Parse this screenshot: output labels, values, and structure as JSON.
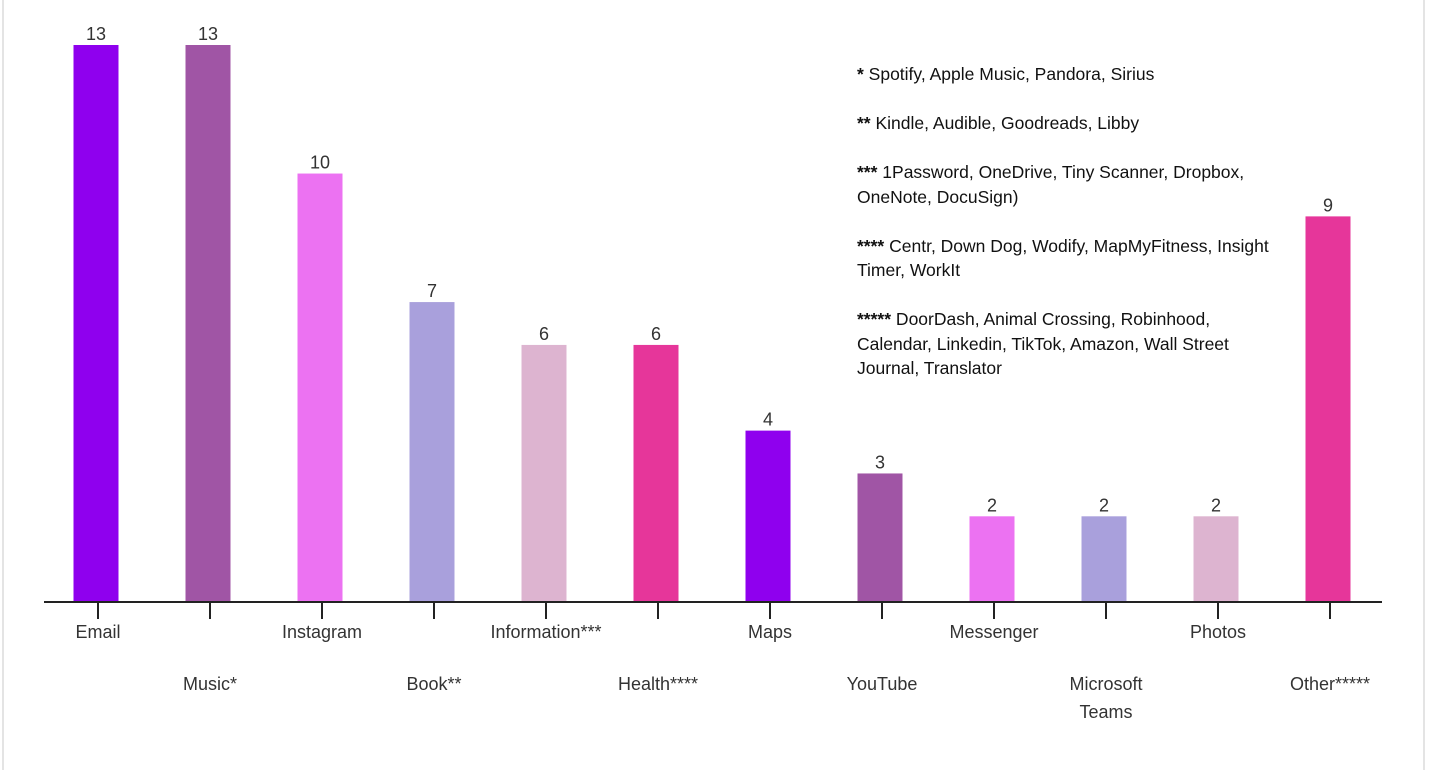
{
  "chart_data": {
    "type": "bar",
    "categories": [
      "Email",
      "Music*",
      "Instagram",
      "Book**",
      "Information***",
      "Health****",
      "Maps",
      "YouTube",
      "Messenger",
      "Microsoft Teams",
      "Photos",
      "Other*****"
    ],
    "values": [
      13,
      13,
      10,
      7,
      6,
      6,
      4,
      3,
      2,
      2,
      2,
      9
    ],
    "colors": [
      "#8f00ee",
      "#a055a5",
      "#ec72f2",
      "#a9a0dc",
      "#ddb4d0",
      "#e6369a",
      "#8f00ee",
      "#a055a5",
      "#ec72f2",
      "#a9a0dc",
      "#ddb4d0",
      "#e6369a"
    ],
    "title": "",
    "xlabel": "",
    "ylabel": "",
    "ylim": [
      0,
      13
    ],
    "grid": false,
    "data_labels": true
  },
  "notes": [
    {
      "marker": "*",
      "text": " Spotify, Apple Music, Pandora, Sirius"
    },
    {
      "marker": "**",
      "text": " Kindle, Audible, Goodreads, Libby"
    },
    {
      "marker": "***",
      "text": " 1Password, OneDrive, Tiny Scanner, Dropbox, OneNote, DocuSign)"
    },
    {
      "marker": "****",
      "text": " Centr, Down Dog, Wodify, MapMyFitness, Insight Timer, WorkIt"
    },
    {
      "marker": "*****",
      "text": " DoorDash, Animal Crossing, Robinhood, Calendar, Linkedin, TikTok, Amazon, Wall Street Journal, Translator"
    }
  ]
}
